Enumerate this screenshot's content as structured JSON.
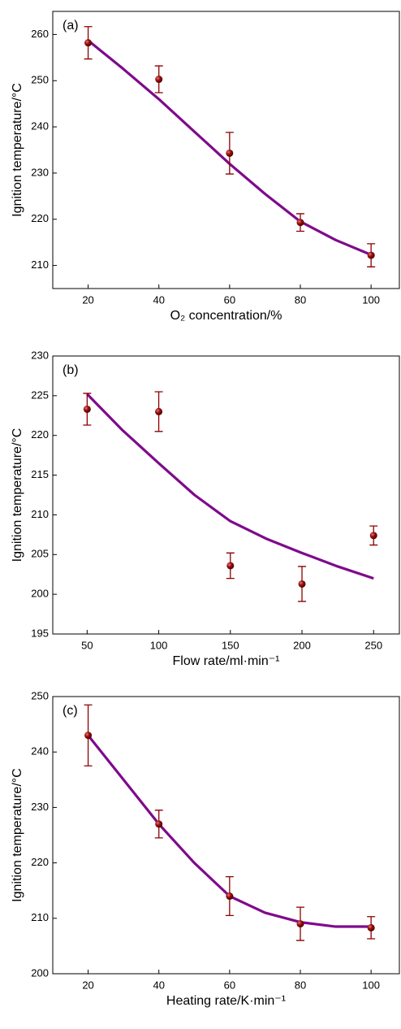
{
  "chart_data": [
    {
      "type": "errorbar-fit",
      "annotation": "(a)",
      "x_label": "O₂ concentration/%",
      "y_label": "Ignition temperature/°C",
      "xlim": [
        10,
        108
      ],
      "xticks": [
        20,
        40,
        60,
        80,
        100
      ],
      "ylim": [
        205,
        265
      ],
      "yticks": [
        210,
        220,
        230,
        240,
        250,
        260
      ],
      "points": {
        "color": "#8b0000",
        "x": [
          20,
          40,
          60,
          80,
          100
        ],
        "values": [
          258.2,
          250.3,
          234.3,
          219.3,
          212.2
        ],
        "errors": [
          3.5,
          2.9,
          4.5,
          1.9,
          2.5
        ]
      },
      "fit": {
        "color": "#7f0a8c",
        "x": [
          20,
          30,
          40,
          50,
          60,
          70,
          80,
          90,
          100
        ],
        "values": [
          258.7,
          252.5,
          246,
          239,
          232,
          225.5,
          219.5,
          215.5,
          212.3
        ]
      }
    },
    {
      "type": "errorbar-fit",
      "annotation": "(b)",
      "x_label": "Flow rate/ml·min⁻¹",
      "y_label": "Ignition temperature/°C",
      "xlim": [
        26,
        268
      ],
      "xticks": [
        50,
        100,
        150,
        200,
        250
      ],
      "ylim": [
        195,
        230
      ],
      "yticks": [
        195,
        200,
        205,
        210,
        215,
        220,
        225,
        230
      ],
      "points": {
        "color": "#8b0000",
        "x": [
          50,
          100,
          150,
          200,
          250
        ],
        "values": [
          223.3,
          223,
          203.6,
          201.3,
          207.4
        ],
        "errors": [
          2,
          2.5,
          1.6,
          2.2,
          1.2
        ]
      },
      "fit": {
        "color": "#7f0a8c",
        "x": [
          50,
          75,
          100,
          125,
          150,
          175,
          200,
          225,
          250
        ],
        "values": [
          225.2,
          220.6,
          216.5,
          212.5,
          209.2,
          207,
          205.2,
          203.5,
          202
        ]
      }
    },
    {
      "type": "errorbar-fit",
      "annotation": "(c)",
      "x_label": "Heating rate/K·min⁻¹",
      "y_label": "Ignition temperature/°C",
      "xlim": [
        10,
        108
      ],
      "xticks": [
        20,
        40,
        60,
        80,
        100
      ],
      "ylim": [
        200,
        250
      ],
      "yticks": [
        200,
        210,
        220,
        230,
        240,
        250
      ],
      "points": {
        "color": "#8b0000",
        "x": [
          20,
          40,
          60,
          80,
          100
        ],
        "values": [
          243,
          227,
          214,
          209,
          208.3
        ],
        "errors": [
          5.5,
          2.5,
          3.5,
          3,
          2
        ]
      },
      "fit": {
        "color": "#7f0a8c",
        "x": [
          20,
          30,
          40,
          50,
          60,
          70,
          80,
          90,
          100
        ],
        "values": [
          243,
          235,
          227,
          220,
          214,
          211,
          209.3,
          208.5,
          208.5
        ]
      }
    }
  ]
}
